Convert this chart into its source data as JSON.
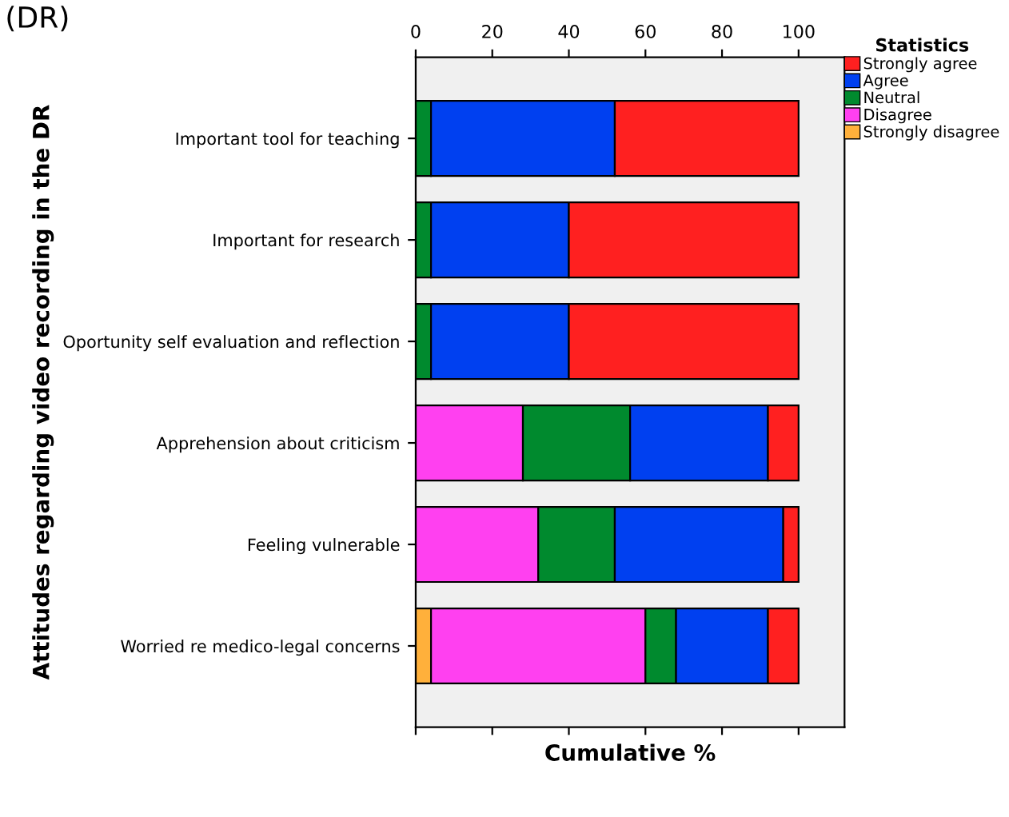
{
  "chart_data": {
    "type": "bar",
    "orientation": "horizontal",
    "stacked": true,
    "annotations": [
      "(DR)"
    ],
    "xlabel": "Cumulative %",
    "ylabel": "Attitudes regarding video recording in the DR",
    "legend_title": "Statistics",
    "legend": "top right",
    "categories": [
      "Important tool for teaching",
      "Important for research",
      "Oportunity self evaluation and reflection",
      "Apprehension about criticism",
      "Feeling vulnerable",
      "Worried re medico-legal concerns"
    ],
    "series": [
      {
        "name": "Strongly disagree",
        "color": "#ffb03b",
        "values": [
          0,
          0,
          0,
          0,
          0,
          4
        ]
      },
      {
        "name": "Disagree",
        "color": "#ff40f0",
        "values": [
          0,
          0,
          0,
          28,
          32,
          56
        ]
      },
      {
        "name": "Neutral",
        "color": "#008a2e",
        "values": [
          4,
          4,
          4,
          28,
          20,
          8
        ]
      },
      {
        "name": "Agree",
        "color": "#0040f0",
        "values": [
          48,
          36,
          36,
          36,
          44,
          24
        ]
      },
      {
        "name": "Strongly agree",
        "color": "#ff2020",
        "values": [
          48,
          60,
          60,
          8,
          4,
          8
        ]
      }
    ],
    "xlim": [
      0,
      112
    ],
    "xticks": [
      0,
      20,
      40,
      60,
      80,
      100
    ],
    "grid": false
  }
}
